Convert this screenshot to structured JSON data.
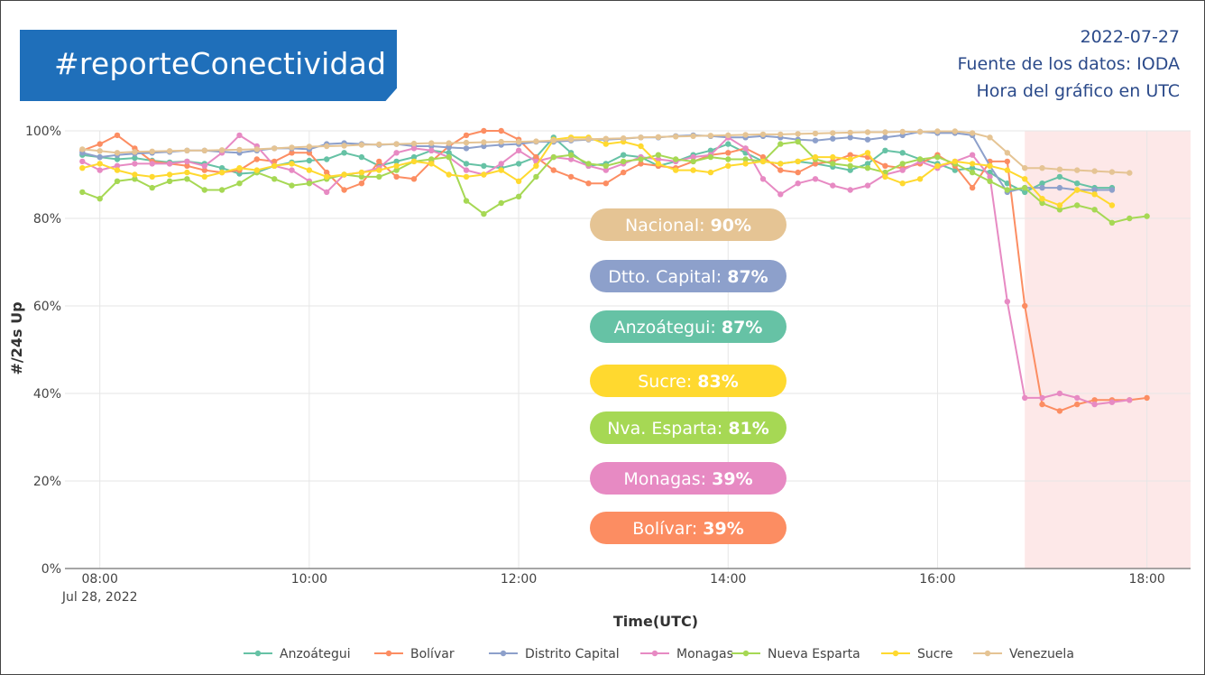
{
  "header": {
    "hashtag": "#reporteConectividad",
    "date": "2022-07-27",
    "source": "Fuente de los datos: IODA",
    "timezone_note": "Hora del gráfico en UTC"
  },
  "summary_pills": [
    {
      "label": "Nacional:",
      "value": "90%",
      "color": "#e5c494"
    },
    {
      "label": "Dtto. Capital:",
      "value": "87%",
      "color": "#8da0cb"
    },
    {
      "label": "Anzoátegui:",
      "value": "87%",
      "color": "#66c2a5"
    },
    {
      "label": "Sucre:",
      "value": "83%",
      "color": "#ffd92f"
    },
    {
      "label": "Nva. Esparta:",
      "value": "81%",
      "color": "#a6d854"
    },
    {
      "label": "Monagas:",
      "value": "39%",
      "color": "#e78ac3"
    },
    {
      "label": "Bolívar:",
      "value": "39%",
      "color": "#fc8d62"
    }
  ],
  "chart_data": {
    "type": "line",
    "xlabel": "Time(UTC)",
    "ylabel": "#/24s Up",
    "x_start": "07:50",
    "x_step_minutes": 10,
    "xlim": [
      "07:40",
      "18:25"
    ],
    "ylim": [
      0,
      100
    ],
    "x_ticks": [
      "08:00",
      "10:00",
      "12:00",
      "14:00",
      "16:00",
      "18:00"
    ],
    "x_tick_sublabel": "Jul 28, 2022",
    "y_ticks": [
      "0%",
      "20%",
      "40%",
      "60%",
      "80%",
      "100%"
    ],
    "highlight_range": {
      "from": "16:50",
      "to": "18:25",
      "color": "#fde8e8"
    },
    "grid": true,
    "legend_position": "bottom",
    "series": [
      {
        "name": "Anzoátegui",
        "color": "#66c2a5",
        "values": [
          94.5,
          94.0,
          93.5,
          93.8,
          93.2,
          92.8,
          93.0,
          92.5,
          91.5,
          90.2,
          90.5,
          92.0,
          92.8,
          93.2,
          93.5,
          95.0,
          94.0,
          92.0,
          93.0,
          94.0,
          95.5,
          95.0,
          92.5,
          92.0,
          91.5,
          92.5,
          94.0,
          98.5,
          95.0,
          92.0,
          92.5,
          94.5,
          94.0,
          92.0,
          93.0,
          94.5,
          95.5,
          97.0,
          95.0,
          93.0,
          92.5,
          93.0,
          92.5,
          91.8,
          91.0,
          92.5,
          95.5,
          95.0,
          93.5,
          92.5,
          91.0,
          91.5,
          90.5,
          88.0,
          86.0,
          88.0,
          89.5,
          88.0,
          87.0,
          87.0
        ]
      },
      {
        "name": "Bolívar",
        "color": "#fc8d62",
        "values": [
          95.5,
          97.0,
          99.0,
          96.0,
          93.0,
          92.5,
          92.0,
          91.0,
          90.5,
          91.0,
          93.5,
          93.0,
          95.0,
          95.0,
          90.5,
          86.5,
          88.0,
          93.0,
          89.5,
          89.0,
          93.0,
          96.5,
          99.0,
          100.0,
          100.0,
          98.0,
          94.0,
          91.0,
          89.5,
          88.0,
          88.0,
          90.5,
          92.5,
          92.0,
          91.5,
          93.0,
          94.5,
          95.0,
          96.0,
          94.0,
          91.0,
          90.5,
          92.5,
          93.0,
          94.5,
          94.0,
          92.0,
          91.5,
          92.5,
          94.5,
          92.0,
          87.0,
          93.0,
          93.0,
          60.0,
          37.5,
          36.0,
          37.5,
          38.5,
          38.5,
          38.5,
          39.0
        ]
      },
      {
        "name": "Distrito Capital",
        "color": "#8da0cb",
        "values": [
          95.0,
          94.0,
          94.5,
          94.8,
          95.0,
          95.2,
          95.5,
          95.5,
          95.2,
          95.0,
          95.5,
          96.0,
          96.0,
          95.8,
          97.0,
          97.2,
          97.0,
          96.8,
          97.0,
          96.5,
          96.5,
          96.2,
          96.0,
          96.5,
          96.8,
          97.0,
          97.5,
          97.5,
          97.8,
          98.0,
          98.0,
          98.2,
          98.5,
          98.5,
          98.8,
          99.0,
          98.8,
          98.5,
          98.5,
          98.8,
          98.5,
          98.0,
          97.8,
          98.2,
          98.5,
          98.0,
          98.5,
          99.0,
          99.8,
          99.5,
          99.5,
          99.0,
          92.0,
          86.0,
          87.0,
          87.0,
          87.0,
          86.5,
          86.5,
          86.5
        ]
      },
      {
        "name": "Monagas",
        "color": "#e78ac3",
        "values": [
          93.0,
          91.0,
          92.0,
          92.5,
          92.5,
          92.5,
          93.0,
          92.0,
          95.0,
          99.0,
          96.5,
          92.0,
          91.0,
          88.5,
          86.0,
          90.0,
          90.5,
          91.5,
          95.0,
          96.0,
          95.5,
          94.0,
          91.0,
          90.0,
          92.5,
          95.5,
          93.0,
          94.0,
          93.5,
          92.0,
          91.0,
          92.5,
          94.0,
          93.5,
          93.0,
          94.0,
          94.5,
          98.5,
          96.0,
          89.0,
          85.5,
          88.0,
          89.0,
          87.5,
          86.5,
          87.5,
          90.0,
          91.0,
          93.0,
          91.5,
          93.0,
          94.5,
          89.5,
          61.0,
          39.0,
          39.0,
          40.0,
          39.0,
          37.5,
          38.0,
          38.5
        ]
      },
      {
        "name": "Nueva Esparta",
        "color": "#a6d854",
        "values": [
          86.0,
          84.5,
          88.5,
          89.0,
          87.0,
          88.5,
          89.0,
          86.5,
          86.5,
          88.0,
          90.5,
          89.0,
          87.5,
          88.0,
          89.0,
          90.0,
          89.5,
          89.5,
          91.0,
          93.0,
          93.5,
          94.0,
          84.0,
          81.0,
          83.5,
          85.0,
          89.5,
          94.0,
          94.5,
          92.5,
          92.0,
          93.0,
          93.5,
          94.5,
          93.5,
          93.0,
          94.0,
          93.5,
          93.5,
          93.0,
          97.0,
          97.5,
          93.5,
          92.5,
          92.0,
          91.5,
          90.5,
          92.5,
          93.5,
          94.0,
          92.5,
          90.5,
          88.5,
          86.5,
          87.0,
          83.5,
          82.0,
          83.0,
          82.0,
          79.0,
          80.0,
          80.5
        ]
      },
      {
        "name": "Sucre",
        "color": "#ffd92f",
        "values": [
          91.5,
          92.5,
          91.0,
          90.0,
          89.5,
          90.0,
          90.5,
          89.5,
          90.5,
          91.5,
          91.0,
          92.0,
          92.5,
          91.0,
          89.5,
          90.0,
          90.5,
          91.0,
          92.0,
          93.0,
          92.5,
          90.0,
          89.5,
          90.0,
          91.0,
          88.5,
          92.0,
          98.0,
          98.5,
          98.5,
          97.0,
          97.5,
          96.5,
          92.5,
          91.0,
          91.0,
          90.5,
          92.0,
          92.5,
          93.0,
          92.5,
          93.0,
          94.0,
          94.0,
          93.5,
          95.0,
          89.5,
          88.0,
          89.0,
          92.0,
          93.0,
          92.5,
          92.0,
          91.0,
          89.0,
          84.5,
          83.0,
          86.5,
          85.5,
          83.0
        ]
      },
      {
        "name": "Venezuela",
        "color": "#e5c494",
        "values": [
          95.8,
          95.4,
          95.0,
          95.2,
          95.3,
          95.4,
          95.5,
          95.5,
          95.6,
          95.7,
          95.8,
          96.0,
          96.2,
          96.4,
          96.5,
          96.6,
          96.8,
          96.9,
          97.0,
          97.1,
          97.2,
          97.2,
          97.3,
          97.4,
          97.5,
          97.5,
          97.6,
          97.8,
          98.0,
          98.1,
          98.2,
          98.3,
          98.5,
          98.6,
          98.7,
          98.8,
          98.9,
          99.0,
          99.1,
          99.2,
          99.2,
          99.3,
          99.4,
          99.5,
          99.6,
          99.7,
          99.7,
          99.8,
          99.8,
          99.9,
          99.9,
          99.5,
          98.5,
          95.0,
          91.5,
          91.5,
          91.2,
          91.0,
          90.8,
          90.6,
          90.4
        ]
      }
    ]
  }
}
